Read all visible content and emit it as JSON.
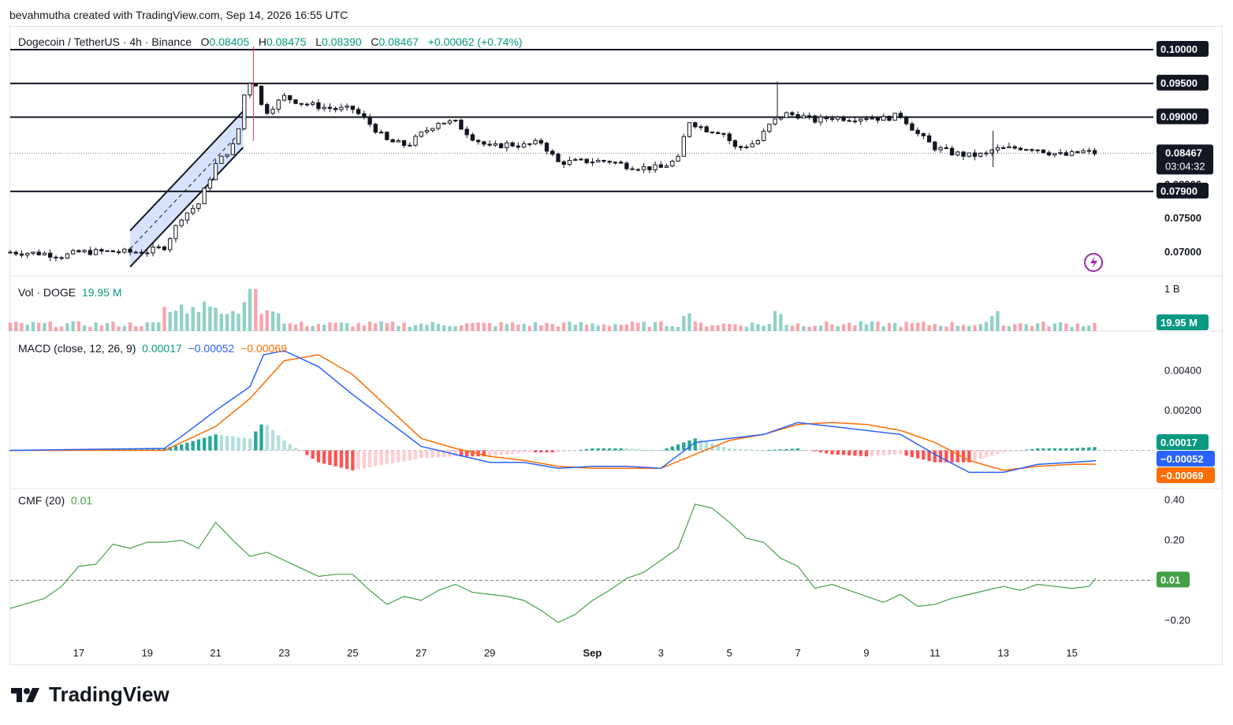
{
  "header": {
    "attribution": "bevahmutha created with TradingView.com, Sep 14, 2026 16:55 UTC"
  },
  "symbol": {
    "title": "Dogecoin / TetherUS · 4h · Binance",
    "open_label": "O",
    "open": "0.08405",
    "high_label": "H",
    "high": "0.08475",
    "low_label": "L",
    "low": "0.08390",
    "close_label": "C",
    "close": "0.08467",
    "change": "+0.00062 (+0.74%)"
  },
  "price_axis": {
    "ticks": [
      "0.10000",
      "0.09500",
      "0.09000",
      "0.08000",
      "0.07900",
      "0.07500",
      "0.07000"
    ],
    "current_price": "0.08467",
    "countdown": "03:04:32",
    "level_lines": [
      "0.10000",
      "0.09500",
      "0.09000",
      "0.07900"
    ]
  },
  "volume": {
    "label": "Vol · DOGE",
    "value": "19.95 M",
    "axis_label": "1 B",
    "badge": "19.95 M"
  },
  "macd": {
    "label": "MACD (close, 12, 26, 9)",
    "hist": "0.00017",
    "macd": "−0.00052",
    "signal": "−0.00069",
    "ticks": [
      "0.00400",
      "0.00200"
    ],
    "badges": [
      "0.00017",
      "−0.00052",
      "−0.00069"
    ]
  },
  "cmf": {
    "label": "CMF (20)",
    "value": "0.01",
    "ticks": [
      "0.40",
      "0.20",
      "−0.20"
    ],
    "badge": "0.01"
  },
  "time_axis": {
    "ticks": [
      "17",
      "19",
      "21",
      "23",
      "25",
      "27",
      "29",
      "Sep",
      "3",
      "5",
      "7",
      "9",
      "11",
      "13",
      "15"
    ]
  },
  "colors": {
    "up": "#089981",
    "down": "#f23645",
    "candle_body": "#131722",
    "macd_line": "#2962ff",
    "signal_line": "#ff6d00",
    "cmf_line": "#43a047",
    "channel_fill": "#c9d8fb"
  },
  "brand": {
    "logo_text": "TradingView"
  },
  "chart_data": {
    "type": "candlestick",
    "title": "Dogecoin / TetherUS · 4h · Binance",
    "xlabel": "",
    "ylabel": "",
    "x_ticks": [
      "17",
      "19",
      "21",
      "23",
      "25",
      "27",
      "29",
      "Sep",
      "3",
      "5",
      "7",
      "9",
      "11",
      "13",
      "15"
    ],
    "ylim": [
      0.0665,
      0.1035
    ],
    "grid": false,
    "price_path": [
      [
        15.0,
        0.07
      ],
      [
        16.0,
        0.0698
      ],
      [
        16.5,
        0.0694
      ],
      [
        17.0,
        0.07
      ],
      [
        18.0,
        0.0701
      ],
      [
        18.5,
        0.07
      ],
      [
        19.0,
        0.0701
      ],
      [
        19.5,
        0.0708
      ],
      [
        20.0,
        0.0752
      ],
      [
        20.5,
        0.0772
      ],
      [
        21.0,
        0.083
      ],
      [
        21.6,
        0.0863
      ],
      [
        21.85,
        0.0938
      ],
      [
        22.1,
        0.0962
      ],
      [
        22.4,
        0.0905
      ],
      [
        23.0,
        0.093
      ],
      [
        23.5,
        0.0921
      ],
      [
        24.0,
        0.0916
      ],
      [
        24.5,
        0.0912
      ],
      [
        25.0,
        0.0912
      ],
      [
        25.5,
        0.089
      ],
      [
        26.0,
        0.0865
      ],
      [
        26.6,
        0.0858
      ],
      [
        27.0,
        0.0875
      ],
      [
        27.5,
        0.0893
      ],
      [
        28.0,
        0.0892
      ],
      [
        28.5,
        0.087
      ],
      [
        29.0,
        0.0855
      ],
      [
        29.5,
        0.086
      ],
      [
        30.0,
        0.0858
      ],
      [
        30.5,
        0.0863
      ],
      [
        31.0,
        0.0833
      ],
      [
        31.5,
        0.0834
      ],
      [
        32.0,
        0.0835
      ],
      [
        32.5,
        0.0835
      ],
      [
        33.0,
        0.0828
      ],
      [
        33.5,
        0.0825
      ],
      [
        34.0,
        0.0825
      ],
      [
        34.5,
        0.0838
      ],
      [
        34.8,
        0.0895
      ],
      [
        35.3,
        0.0882
      ],
      [
        35.8,
        0.0878
      ],
      [
        36.2,
        0.0853
      ],
      [
        36.8,
        0.0863
      ],
      [
        37.2,
        0.089
      ],
      [
        37.6,
        0.0905
      ],
      [
        38.0,
        0.0903
      ],
      [
        38.5,
        0.0895
      ],
      [
        39.0,
        0.09
      ],
      [
        39.5,
        0.0898
      ],
      [
        40.0,
        0.09
      ],
      [
        40.5,
        0.0898
      ],
      [
        41.0,
        0.0903
      ],
      [
        41.5,
        0.0875
      ],
      [
        42.0,
        0.0855
      ],
      [
        42.5,
        0.0847
      ],
      [
        43.0,
        0.0843
      ],
      [
        43.5,
        0.0845
      ],
      [
        43.7,
        0.0852
      ],
      [
        44.0,
        0.0853
      ],
      [
        44.5,
        0.0855
      ],
      [
        45.0,
        0.0853
      ],
      [
        45.3,
        0.0848
      ],
      [
        45.8,
        0.0843
      ],
      [
        46.3,
        0.0849
      ],
      [
        46.7,
        0.0847
      ]
    ],
    "resistance_levels": [
      0.1,
      0.095,
      0.09
    ],
    "support_levels": [
      0.079
    ],
    "current_price": 0.08467,
    "volume": {
      "name": "Vol · DOGE",
      "last": 19950000,
      "ylim": [
        0,
        1000000000
      ],
      "spike_x": 22.1,
      "spike_value": 860000000
    },
    "macd": {
      "name": "MACD (close, 12, 26, 9)",
      "ylim": [
        -0.0016,
        0.0052
      ],
      "macd_line": [
        [
          15,
          0.0
        ],
        [
          19.5,
          0.0001
        ],
        [
          20,
          0.0007
        ],
        [
          21,
          0.002
        ],
        [
          22,
          0.0032
        ],
        [
          22.4,
          0.0048
        ],
        [
          23,
          0.005
        ],
        [
          24,
          0.0042
        ],
        [
          25,
          0.0028
        ],
        [
          26,
          0.0015
        ],
        [
          27,
          0.0002
        ],
        [
          28,
          -0.0002
        ],
        [
          29,
          -0.0006
        ],
        [
          30,
          -0.0006
        ],
        [
          31,
          -0.0009
        ],
        [
          32,
          -0.0008
        ],
        [
          33,
          -0.0008
        ],
        [
          34,
          -0.0009
        ],
        [
          35,
          0.0004
        ],
        [
          36,
          0.0006
        ],
        [
          37,
          0.0008
        ],
        [
          38,
          0.0014
        ],
        [
          39,
          0.0012
        ],
        [
          40,
          0.001
        ],
        [
          41,
          0.0008
        ],
        [
          42,
          -0.0002
        ],
        [
          43,
          -0.0011
        ],
        [
          44,
          -0.0011
        ],
        [
          45,
          -0.0007
        ],
        [
          46,
          -0.0006
        ],
        [
          46.7,
          -0.00052
        ]
      ],
      "signal_line": [
        [
          15,
          0.0
        ],
        [
          19.5,
          0.0
        ],
        [
          20,
          0.0004
        ],
        [
          21,
          0.0012
        ],
        [
          22,
          0.0026
        ],
        [
          23,
          0.0045
        ],
        [
          24,
          0.0048
        ],
        [
          25,
          0.0038
        ],
        [
          26,
          0.0022
        ],
        [
          27,
          0.0006
        ],
        [
          28,
          0.0001
        ],
        [
          29,
          -0.0003
        ],
        [
          30,
          -0.0005
        ],
        [
          31,
          -0.0008
        ],
        [
          32,
          -0.0009
        ],
        [
          33,
          -0.0009
        ],
        [
          34,
          -0.0009
        ],
        [
          35,
          -0.0002
        ],
        [
          36,
          0.0005
        ],
        [
          37,
          0.0008
        ],
        [
          38,
          0.0013
        ],
        [
          39,
          0.0014
        ],
        [
          40,
          0.0013
        ],
        [
          41,
          0.001
        ],
        [
          42,
          0.0004
        ],
        [
          43,
          -0.0005
        ],
        [
          44,
          -0.001
        ],
        [
          45,
          -0.0008
        ],
        [
          46,
          -0.0007
        ],
        [
          46.7,
          -0.00069
        ]
      ]
    },
    "cmf": {
      "name": "CMF (20)",
      "ylim": [
        -0.25,
        0.45
      ],
      "values": [
        [
          15,
          -0.14
        ],
        [
          16,
          -0.09
        ],
        [
          16.5,
          -0.03
        ],
        [
          17,
          0.07
        ],
        [
          17.5,
          0.08
        ],
        [
          18,
          0.18
        ],
        [
          18.5,
          0.16
        ],
        [
          19,
          0.19
        ],
        [
          19.5,
          0.19
        ],
        [
          20,
          0.2
        ],
        [
          20.5,
          0.16
        ],
        [
          21,
          0.29
        ],
        [
          21.5,
          0.2
        ],
        [
          22,
          0.12
        ],
        [
          22.5,
          0.14
        ],
        [
          23,
          0.1
        ],
        [
          23.5,
          0.06
        ],
        [
          24,
          0.02
        ],
        [
          24.5,
          0.03
        ],
        [
          25,
          0.03
        ],
        [
          25.5,
          -0.05
        ],
        [
          26,
          -0.12
        ],
        [
          26.5,
          -0.08
        ],
        [
          27,
          -0.1
        ],
        [
          27.5,
          -0.05
        ],
        [
          28,
          -0.02
        ],
        [
          28.5,
          -0.06
        ],
        [
          29,
          -0.07
        ],
        [
          29.5,
          -0.08
        ],
        [
          30,
          -0.1
        ],
        [
          30.5,
          -0.15
        ],
        [
          31,
          -0.21
        ],
        [
          31.5,
          -0.17
        ],
        [
          32,
          -0.1
        ],
        [
          32.5,
          -0.05
        ],
        [
          33,
          0.01
        ],
        [
          33.5,
          0.04
        ],
        [
          34,
          0.1
        ],
        [
          34.5,
          0.16
        ],
        [
          35,
          0.38
        ],
        [
          35.5,
          0.36
        ],
        [
          36,
          0.29
        ],
        [
          36.5,
          0.21
        ],
        [
          37,
          0.19
        ],
        [
          37.5,
          0.11
        ],
        [
          38,
          0.07
        ],
        [
          38.5,
          -0.04
        ],
        [
          39,
          -0.02
        ],
        [
          39.5,
          -0.05
        ],
        [
          40,
          -0.08
        ],
        [
          40.5,
          -0.11
        ],
        [
          41,
          -0.07
        ],
        [
          41.5,
          -0.13
        ],
        [
          42,
          -0.12
        ],
        [
          42.5,
          -0.09
        ],
        [
          43,
          -0.07
        ],
        [
          43.5,
          -0.05
        ],
        [
          44,
          -0.03
        ],
        [
          44.5,
          -0.05
        ],
        [
          45,
          -0.02
        ],
        [
          45.5,
          -0.03
        ],
        [
          46,
          -0.04
        ],
        [
          46.5,
          -0.03
        ],
        [
          46.7,
          0.01
        ]
      ]
    }
  }
}
